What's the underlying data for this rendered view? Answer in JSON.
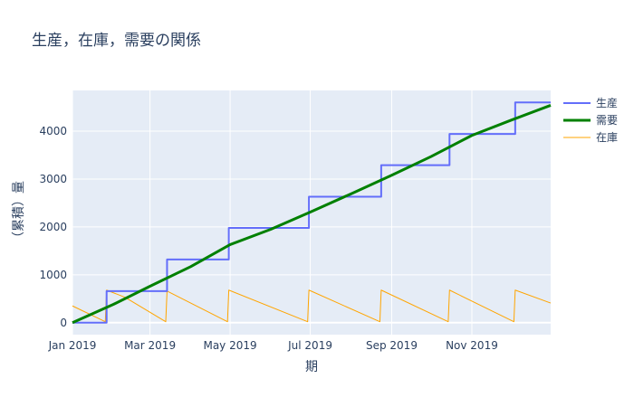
{
  "chart_data": {
    "type": "line",
    "title": "生産，在庫，需要の関係",
    "xlabel": "期",
    "ylabel": "（累積）量",
    "x_range": [
      "2019-01-01",
      "2019-12-31"
    ],
    "ylim": [
      -250,
      4850
    ],
    "x_ticks": [
      {
        "date": "2019-01-01",
        "label": "Jan 2019"
      },
      {
        "date": "2019-03-01",
        "label": "Mar 2019"
      },
      {
        "date": "2019-05-01",
        "label": "May 2019"
      },
      {
        "date": "2019-07-01",
        "label": "Jul 2019"
      },
      {
        "date": "2019-09-01",
        "label": "Sep 2019"
      },
      {
        "date": "2019-11-01",
        "label": "Nov 2019"
      }
    ],
    "y_ticks": [
      0,
      1000,
      2000,
      3000,
      4000
    ],
    "legend_position": "top-right",
    "grid": true,
    "series": [
      {
        "name": "生産",
        "color": "#636efa",
        "shape": "step",
        "points": [
          [
            "2019-01-01",
            0
          ],
          [
            "2019-01-27",
            0
          ],
          [
            "2019-01-27",
            660
          ],
          [
            "2019-03-14",
            660
          ],
          [
            "2019-03-14",
            1320
          ],
          [
            "2019-04-30",
            1320
          ],
          [
            "2019-04-30",
            1980
          ],
          [
            "2019-06-30",
            1980
          ],
          [
            "2019-06-30",
            2630
          ],
          [
            "2019-08-24",
            2630
          ],
          [
            "2019-08-24",
            3290
          ],
          [
            "2019-10-15",
            3290
          ],
          [
            "2019-10-15",
            3940
          ],
          [
            "2019-12-04",
            3940
          ],
          [
            "2019-12-04",
            4600
          ],
          [
            "2019-12-31",
            4600
          ]
        ]
      },
      {
        "name": "需要",
        "color": "#008000",
        "shape": "line",
        "points": [
          [
            "2019-01-01",
            0
          ],
          [
            "2019-02-01",
            380
          ],
          [
            "2019-03-01",
            760
          ],
          [
            "2019-04-01",
            1170
          ],
          [
            "2019-05-01",
            1630
          ],
          [
            "2019-06-01",
            1950
          ],
          [
            "2019-07-01",
            2310
          ],
          [
            "2019-08-01",
            2690
          ],
          [
            "2019-09-01",
            3080
          ],
          [
            "2019-10-01",
            3470
          ],
          [
            "2019-11-01",
            3910
          ],
          [
            "2019-12-01",
            4230
          ],
          [
            "2019-12-31",
            4540
          ]
        ]
      },
      {
        "name": "在庫",
        "color": "#ffa500",
        "shape": "line",
        "points": [
          [
            "2019-01-01",
            350
          ],
          [
            "2019-01-26",
            20
          ],
          [
            "2019-01-27",
            680
          ],
          [
            "2019-02-10",
            530
          ],
          [
            "2019-03-13",
            20
          ],
          [
            "2019-03-14",
            660
          ],
          [
            "2019-04-29",
            20
          ],
          [
            "2019-04-30",
            680
          ],
          [
            "2019-06-29",
            20
          ],
          [
            "2019-06-30",
            680
          ],
          [
            "2019-08-23",
            20
          ],
          [
            "2019-08-24",
            680
          ],
          [
            "2019-10-14",
            20
          ],
          [
            "2019-10-15",
            680
          ],
          [
            "2019-12-03",
            20
          ],
          [
            "2019-12-04",
            680
          ],
          [
            "2019-12-31",
            410
          ]
        ]
      }
    ]
  }
}
